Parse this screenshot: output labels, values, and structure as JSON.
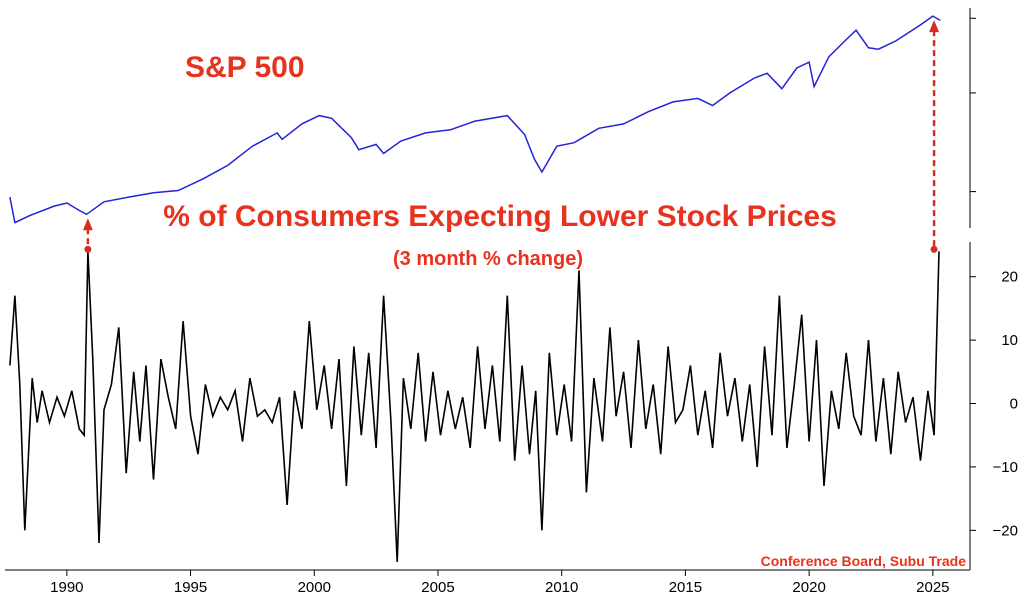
{
  "chart_data": [
    {
      "type": "line",
      "title": "S&P 500",
      "scale": "log",
      "color": "#2323d8",
      "x": [
        1987.7,
        1987.9,
        1988.5,
        1989.5,
        1990.0,
        1990.5,
        1990.8,
        1991.5,
        1992.5,
        1993.5,
        1994.5,
        1995.5,
        1996.5,
        1997.5,
        1998.5,
        1998.7,
        1999.5,
        2000.2,
        2000.7,
        2001.5,
        2001.8,
        2002.5,
        2002.8,
        2003.5,
        2004.5,
        2005.5,
        2006.5,
        2007.8,
        2008.5,
        2008.9,
        2009.2,
        2009.8,
        2010.5,
        2011.5,
        2012.5,
        2013.5,
        2014.5,
        2015.5,
        2016.1,
        2016.8,
        2017.8,
        2018.3,
        2018.9,
        2019.5,
        2020.0,
        2020.2,
        2020.8,
        2021.5,
        2021.9,
        2022.4,
        2022.8,
        2023.5,
        2024.5,
        2025.0,
        2025.3
      ],
      "values": [
        1.9,
        1.5,
        1.6,
        1.75,
        1.8,
        1.68,
        1.62,
        1.82,
        1.9,
        1.98,
        2.02,
        2.25,
        2.55,
        3.05,
        3.45,
        3.25,
        3.75,
        4.05,
        3.95,
        3.3,
        2.95,
        3.1,
        2.85,
        3.2,
        3.45,
        3.55,
        3.85,
        4.05,
        3.4,
        2.7,
        2.4,
        3.05,
        3.15,
        3.6,
        3.75,
        4.2,
        4.6,
        4.75,
        4.45,
        5.0,
        5.75,
        6.0,
        5.2,
        6.3,
        6.65,
        5.3,
        7.0,
        8.2,
        8.95,
        7.6,
        7.5,
        8.1,
        9.4,
        10.2,
        9.8
      ]
    },
    {
      "type": "line",
      "title": "% of Consumers Expecting Lower Stock Prices",
      "subtitle": "(3 month % change)",
      "color": "#000000",
      "ylim": [
        -25,
        25
      ],
      "yticks": [
        -20,
        -10,
        0,
        10,
        20
      ],
      "xticks": [
        1990,
        1995,
        2000,
        2005,
        2010,
        2015,
        2020,
        2025
      ],
      "x": [
        1987.7,
        1987.9,
        1988.1,
        1988.3,
        1988.6,
        1988.8,
        1989.0,
        1989.3,
        1989.6,
        1989.9,
        1990.2,
        1990.5,
        1990.7,
        1990.85,
        1991.05,
        1991.3,
        1991.5,
        1991.8,
        1992.1,
        1992.4,
        1992.7,
        1992.95,
        1993.2,
        1993.5,
        1993.8,
        1994.1,
        1994.4,
        1994.7,
        1995.0,
        1995.3,
        1995.6,
        1995.9,
        1996.2,
        1996.5,
        1996.8,
        1997.1,
        1997.4,
        1997.7,
        1998.0,
        1998.3,
        1998.6,
        1998.9,
        1999.2,
        1999.5,
        1999.8,
        2000.1,
        2000.4,
        2000.7,
        2001.0,
        2001.3,
        2001.6,
        2001.9,
        2002.2,
        2002.5,
        2002.8,
        2003.1,
        2003.35,
        2003.6,
        2003.9,
        2004.2,
        2004.5,
        2004.8,
        2005.1,
        2005.4,
        2005.7,
        2006.0,
        2006.3,
        2006.6,
        2006.9,
        2007.2,
        2007.5,
        2007.8,
        2008.1,
        2008.4,
        2008.7,
        2008.95,
        2009.2,
        2009.5,
        2009.8,
        2010.1,
        2010.4,
        2010.7,
        2011.0,
        2011.3,
        2011.65,
        2011.95,
        2012.2,
        2012.5,
        2012.8,
        2013.1,
        2013.4,
        2013.7,
        2014.0,
        2014.3,
        2014.6,
        2014.9,
        2015.2,
        2015.5,
        2015.8,
        2016.1,
        2016.4,
        2016.7,
        2017.0,
        2017.3,
        2017.6,
        2017.9,
        2018.2,
        2018.5,
        2018.8,
        2019.1,
        2019.4,
        2019.7,
        2020.0,
        2020.3,
        2020.6,
        2020.9,
        2021.2,
        2021.5,
        2021.8,
        2022.1,
        2022.4,
        2022.7,
        2023.0,
        2023.3,
        2023.6,
        2023.9,
        2024.2,
        2024.5,
        2024.8,
        2025.05,
        2025.25
      ],
      "values": [
        6,
        17,
        3,
        -20,
        4,
        -3,
        2,
        -3,
        1,
        -2,
        2,
        -4,
        -5,
        24,
        7,
        -22,
        -1,
        3,
        12,
        -11,
        5,
        -6,
        6,
        -12,
        7,
        1,
        -4,
        13,
        -2,
        -8,
        3,
        -2,
        1,
        -1,
        2,
        -6,
        4,
        -2,
        -1,
        -3,
        1,
        -16,
        2,
        -4,
        13,
        -1,
        6,
        -4,
        7,
        -13,
        9,
        -5,
        8,
        -7,
        17,
        -3,
        -25,
        4,
        -4,
        8,
        -6,
        5,
        -5,
        2,
        -4,
        1,
        -7,
        9,
        -4,
        6,
        -6,
        17,
        -9,
        6,
        -8,
        2,
        -20,
        8,
        -5,
        3,
        -6,
        21,
        -14,
        4,
        -6,
        12,
        -2,
        5,
        -7,
        10,
        -4,
        3,
        -8,
        9,
        -3,
        -1,
        6,
        -5,
        2,
        -7,
        8,
        -2,
        4,
        -6,
        3,
        -10,
        9,
        -5,
        17,
        -7,
        3,
        14,
        -6,
        10,
        -13,
        2,
        -4,
        8,
        -2,
        -5,
        10,
        -6,
        4,
        -8,
        5,
        -3,
        1,
        -9,
        2,
        -5,
        24
      ],
      "ylabel_ticks": [
        "−20",
        "−10",
        "0",
        "10",
        "20"
      ]
    }
  ],
  "annotations": {
    "sp500_label": "S&P 500",
    "consumers_label": "% of Consumers Expecting Lower Stock Prices",
    "change_label": "(3 month % change)",
    "source": "Conference Board, Subu Trade",
    "arrow_color": "#d42d1f"
  }
}
